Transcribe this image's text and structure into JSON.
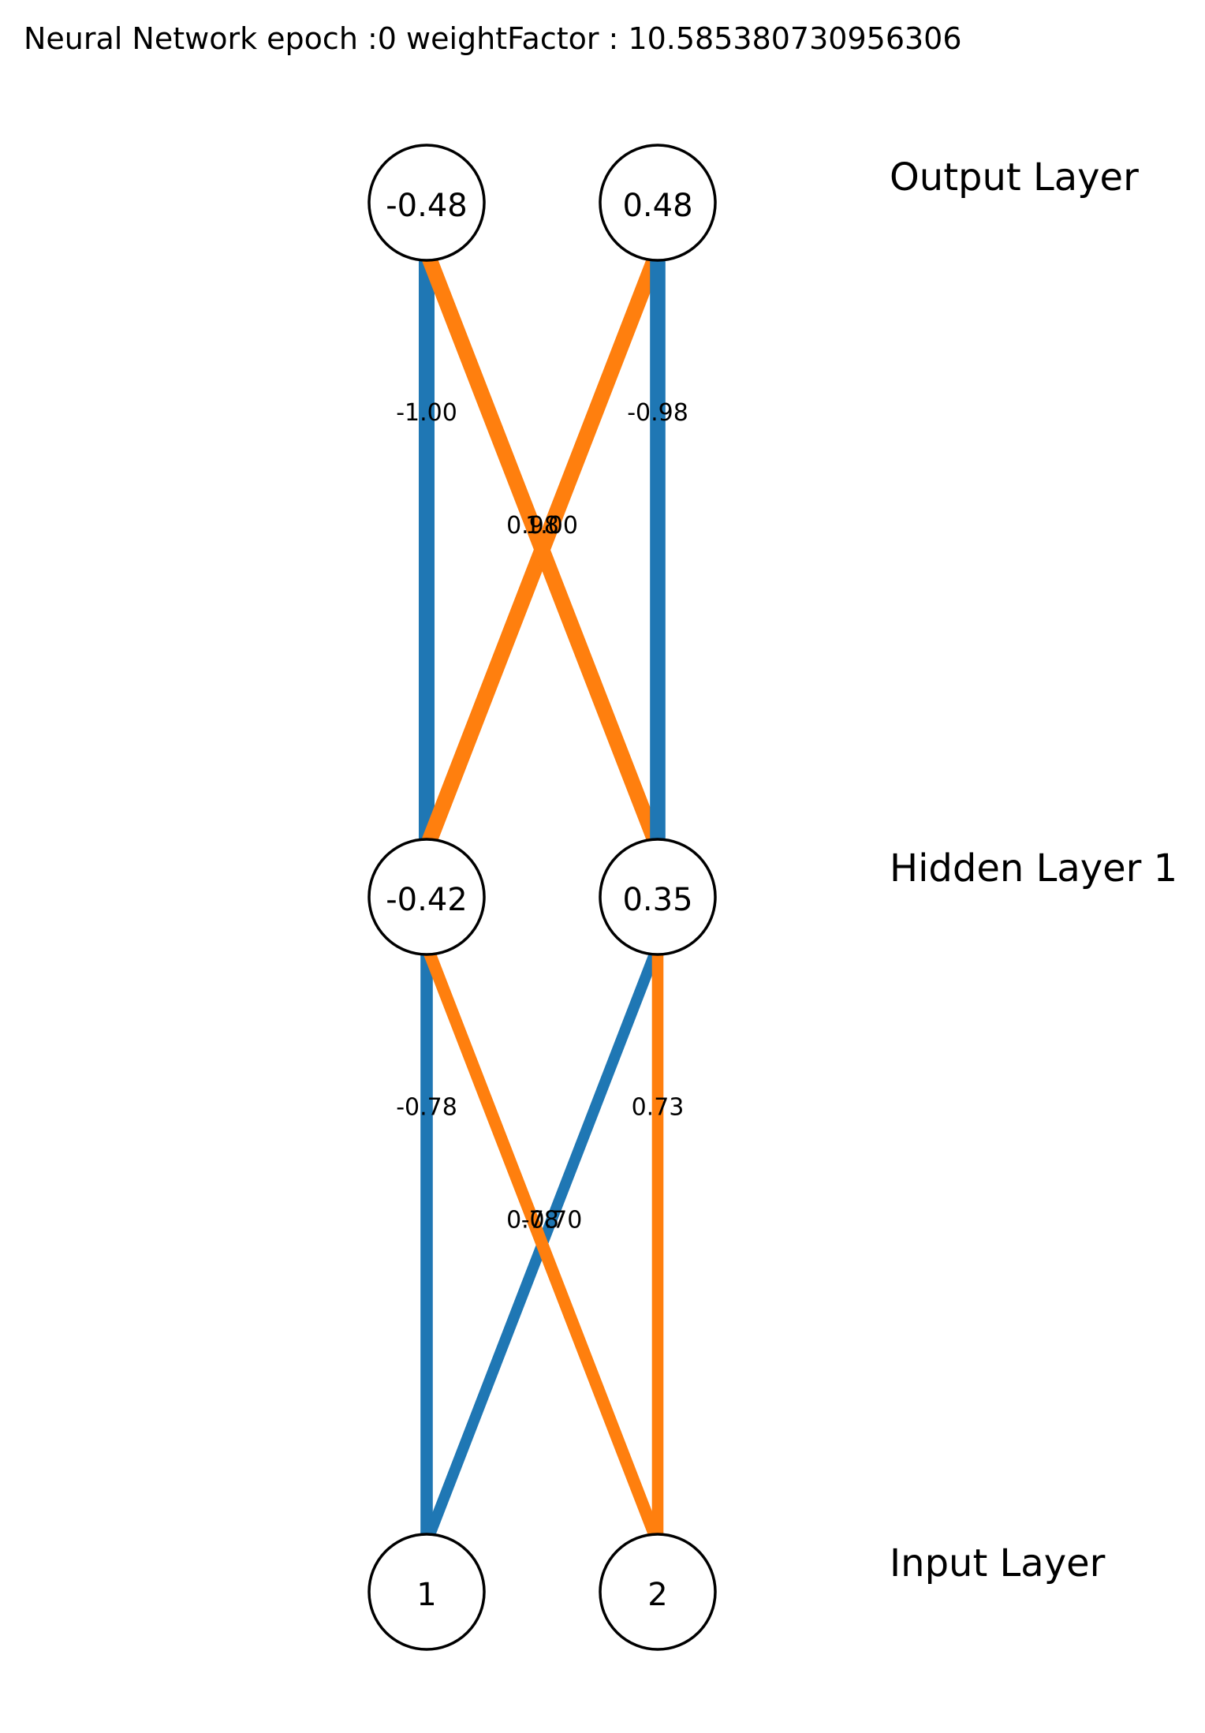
{
  "title": "Neural Network epoch :0 weightFactor : 10.585380730956306",
  "colors": {
    "negative": "#1f77b4",
    "positive": "#ff7f0e",
    "node_stroke": "#000000",
    "node_fill": "#ffffff",
    "text": "#000000"
  },
  "layers": [
    {
      "label": "Input Layer",
      "nodes": [
        {
          "label": "1"
        },
        {
          "label": "2"
        }
      ]
    },
    {
      "label": "Hidden Layer 1",
      "nodes": [
        {
          "label": "-0.42"
        },
        {
          "label": "0.35"
        }
      ]
    },
    {
      "label": "Output Layer",
      "nodes": [
        {
          "label": "-0.48"
        },
        {
          "label": "0.48"
        }
      ]
    }
  ],
  "connections": [
    {
      "from_layer": 0,
      "from": 0,
      "to": 0,
      "weight": -0.78,
      "label": "-0.78"
    },
    {
      "from_layer": 0,
      "from": 0,
      "to": 1,
      "weight": -0.7,
      "label": "-0.70"
    },
    {
      "from_layer": 0,
      "from": 1,
      "to": 0,
      "weight": 0.78,
      "label": "0.78"
    },
    {
      "from_layer": 0,
      "from": 1,
      "to": 1,
      "weight": 0.73,
      "label": "0.73"
    },
    {
      "from_layer": 1,
      "from": 0,
      "to": 0,
      "weight": -1.0,
      "label": "-1.00"
    },
    {
      "from_layer": 1,
      "from": 0,
      "to": 1,
      "weight": 1.0,
      "label": "1.00"
    },
    {
      "from_layer": 1,
      "from": 1,
      "to": 0,
      "weight": 0.98,
      "label": "0.98"
    },
    {
      "from_layer": 1,
      "from": 1,
      "to": 1,
      "weight": -0.98,
      "label": "-0.98"
    }
  ]
}
